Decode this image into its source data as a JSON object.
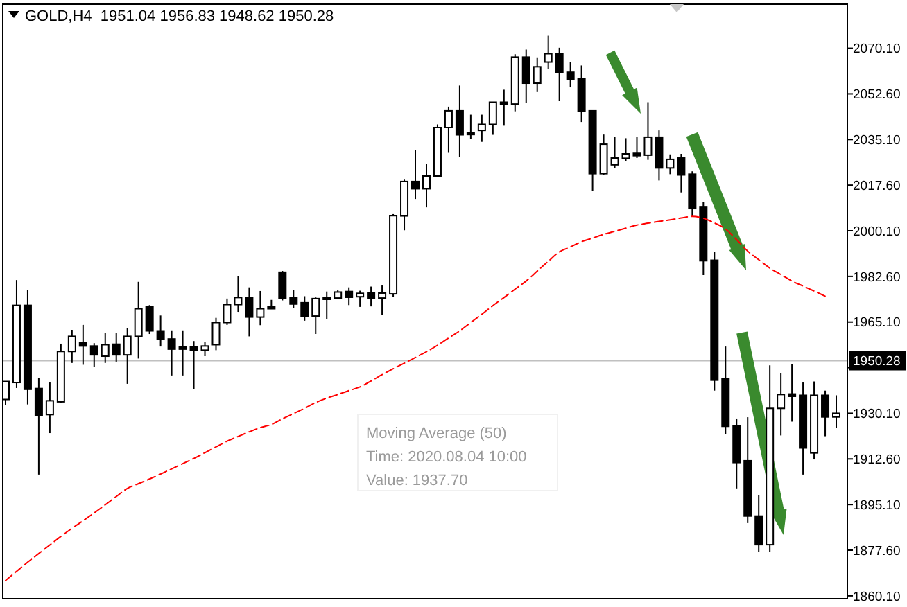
{
  "chart_data": {
    "type": "candlestick",
    "title": "GOLD,H4  1951.04 1956.83 1948.62 1950.28",
    "annotations": [
      "Moving Average (50)",
      "Time: 2020.08.04 10:00",
      "Value: 1937.70"
    ],
    "categories": [
      null,
      null,
      null,
      null,
      null,
      null,
      null,
      null,
      null,
      null,
      null,
      null,
      null,
      null,
      null,
      null,
      null,
      null,
      null,
      null,
      null,
      null,
      null,
      null,
      null,
      null,
      null,
      null,
      null,
      null,
      null,
      null,
      null,
      null,
      null,
      null,
      null,
      null,
      null,
      null,
      null,
      null,
      null,
      null,
      null,
      null,
      null,
      null,
      null,
      null,
      null,
      null,
      null,
      null,
      null,
      null,
      null,
      null,
      null,
      null,
      null,
      null,
      null,
      null,
      null,
      null,
      null,
      null,
      null,
      null,
      null,
      null,
      null,
      null,
      null,
      null
    ],
    "ylim": [
      1859,
      2087
    ],
    "tick_labels": "y",
    "yticks": [
      {
        "value": 2070.1,
        "label": "2070.10"
      },
      {
        "value": 2052.6,
        "label": "2052.60"
      },
      {
        "value": 2035.1,
        "label": "2035.10"
      },
      {
        "value": 2017.6,
        "label": "2017.60"
      },
      {
        "value": 2000.1,
        "label": "2000.10"
      },
      {
        "value": 1982.6,
        "label": "1982.60"
      },
      {
        "value": 1965.1,
        "label": "1965.10"
      },
      {
        "value": 1947.6,
        "label": null
      },
      {
        "value": 1930.1,
        "label": "1930.10"
      },
      {
        "value": 1912.6,
        "label": "1912.60"
      },
      {
        "value": 1895.1,
        "label": "1895.10"
      },
      {
        "value": 1877.6,
        "label": "1877.60"
      },
      {
        "value": 1860.1,
        "label": "1860.10"
      }
    ],
    "ref_lines": [
      {
        "axis": "y",
        "value": 1950.28,
        "label": "1950.28",
        "color": "#c0c0c0"
      }
    ],
    "color": "#000000",
    "ohlc": [
      [
        1935.4,
        1942.3,
        1933.3,
        1942.3
      ],
      [
        1941.9,
        1981.2,
        1939.8,
        1971.5
      ],
      [
        1971.5,
        1977.3,
        1933.5,
        1939.3
      ],
      [
        1939.6,
        1943.7,
        1906.6,
        1929.2
      ],
      [
        1929.6,
        1941.9,
        1922.5,
        1934.9
      ],
      [
        1934.5,
        1956.8,
        1934.0,
        1953.8
      ],
      [
        1953.8,
        1962.1,
        1949.4,
        1959.6
      ],
      [
        1957.1,
        1964.0,
        1948.7,
        1955.9
      ],
      [
        1955.9,
        1957.0,
        1947.8,
        1952.5
      ],
      [
        1952.0,
        1960.9,
        1949.4,
        1956.4
      ],
      [
        1956.6,
        1961.0,
        1949.9,
        1952.5
      ],
      [
        1952.5,
        1962.8,
        1941.4,
        1959.6
      ],
      [
        1959.6,
        1980.5,
        1951.1,
        1970.2
      ],
      [
        1971.1,
        1971.6,
        1960.5,
        1961.7
      ],
      [
        1961.7,
        1967.6,
        1955.7,
        1958.4
      ],
      [
        1958.6,
        1961.9,
        1944.6,
        1954.7
      ],
      [
        1955.6,
        1961.9,
        1944.6,
        1954.7
      ],
      [
        1955.6,
        1957.8,
        1939.3,
        1954.3
      ],
      [
        1954.3,
        1957.5,
        1952.0,
        1955.9
      ],
      [
        1956.4,
        1966.7,
        1954.3,
        1964.9
      ],
      [
        1964.9,
        1974.1,
        1964.0,
        1971.8
      ],
      [
        1971.8,
        1982.6,
        1969.0,
        1974.5
      ],
      [
        1974.5,
        1978.4,
        1959.6,
        1967.0
      ],
      [
        1967.0,
        1977.0,
        1963.9,
        1970.2
      ],
      [
        1970.9,
        1973.6,
        1970.2,
        1970.2
      ],
      [
        1984.2,
        1984.7,
        1973.4,
        1974.3
      ],
      [
        1974.5,
        1977.3,
        1970.6,
        1972.0
      ],
      [
        1972.5,
        1975.0,
        1965.6,
        1967.4
      ],
      [
        1967.4,
        1974.7,
        1960.5,
        1974.1
      ],
      [
        1974.5,
        1976.8,
        1966.3,
        1973.8
      ],
      [
        1974.3,
        1977.5,
        1973.8,
        1976.6
      ],
      [
        1976.8,
        1978.4,
        1971.6,
        1974.6
      ],
      [
        1974.8,
        1977.1,
        1970.9,
        1976.1
      ],
      [
        1976.2,
        1978.7,
        1971.1,
        1974.3
      ],
      [
        1974.3,
        1979.1,
        1967.7,
        1976.2
      ],
      [
        1975.9,
        2006.5,
        1974.6,
        2005.9
      ],
      [
        2005.8,
        2019.7,
        2000.3,
        2019.0
      ],
      [
        2019.0,
        2031.0,
        2012.3,
        2016.2
      ],
      [
        2016.2,
        2025.7,
        2009.1,
        2021.1
      ],
      [
        2021.1,
        2040.9,
        2021.0,
        2039.7
      ],
      [
        2039.7,
        2047.7,
        2030.0,
        2046.1
      ],
      [
        2046.1,
        2055.8,
        2028.4,
        2036.9
      ],
      [
        2037.7,
        2044.6,
        2035.3,
        2037.0
      ],
      [
        2038.6,
        2044.6,
        2034.2,
        2040.9
      ],
      [
        2040.9,
        2049.4,
        2036.9,
        2049.4
      ],
      [
        2049.4,
        2054.2,
        2040.4,
        2048.5
      ],
      [
        2048.7,
        2067.8,
        2045.9,
        2066.7
      ],
      [
        2066.7,
        2069.6,
        2049.0,
        2056.7
      ],
      [
        2056.7,
        2066.6,
        2053.3,
        2063.0
      ],
      [
        2064.8,
        2074.9,
        2062.1,
        2068.0
      ],
      [
        2068.0,
        2070.3,
        2049.8,
        2060.9
      ],
      [
        2060.9,
        2064.8,
        2055.1,
        2058.3
      ],
      [
        2058.3,
        2063.5,
        2041.8,
        2045.9
      ],
      [
        2046.1,
        2046.1,
        2015.3,
        2022.0
      ],
      [
        2022.0,
        2037.0,
        2021.5,
        2033.3
      ],
      [
        2025.4,
        2036.2,
        2024.2,
        2028.0
      ],
      [
        2027.9,
        2035.6,
        2026.8,
        2029.6
      ],
      [
        2029.8,
        2036.0,
        2028.0,
        2028.9
      ],
      [
        2029.1,
        2049.4,
        2027.3,
        2036.0
      ],
      [
        2036.0,
        2038.6,
        2019.4,
        2024.2
      ],
      [
        2024.2,
        2029.4,
        2021.8,
        2027.5
      ],
      [
        2028.0,
        2029.6,
        2014.8,
        2021.5
      ],
      [
        2021.8,
        2022.9,
        2005.6,
        2008.6
      ],
      [
        2009.1,
        2011.2,
        1983.1,
        1988.6
      ],
      [
        1988.8,
        1992.1,
        1938.8,
        1942.8
      ],
      [
        1943.4,
        1955.7,
        1922.1,
        1925.1
      ],
      [
        1925.3,
        1928.1,
        1901.3,
        1911.2
      ],
      [
        1911.9,
        1928.6,
        1888.0,
        1890.7
      ],
      [
        1890.7,
        1898.6,
        1877.0,
        1879.7
      ],
      [
        1879.7,
        1948.5,
        1877.0,
        1932.0
      ],
      [
        1932.0,
        1945.5,
        1921.6,
        1937.3
      ],
      [
        1937.5,
        1949.0,
        1926.9,
        1936.6
      ],
      [
        1937.0,
        1941.9,
        1906.6,
        1916.8
      ],
      [
        1914.9,
        1942.3,
        1912.4,
        1937.0
      ],
      [
        1937.0,
        1938.8,
        1921.3,
        1928.7
      ],
      [
        1928.7,
        1937.0,
        1924.6,
        1930.1
      ]
    ],
    "series": [
      {
        "type": "line",
        "color": "#ff0000",
        "line_style": "dashed",
        "values": [
          1866.0,
          1869.5,
          1873.0,
          1876.3,
          1879.6,
          1882.9,
          1886.0,
          1888.9,
          1891.9,
          1895.0,
          1898.2,
          1901.3,
          1903.1,
          1904.9,
          1906.8,
          1908.8,
          1910.8,
          1912.8,
          1915.0,
          1917.2,
          1919.4,
          1921.2,
          1923.0,
          1924.6,
          1925.8,
          1928.0,
          1930.0,
          1932.0,
          1934.2,
          1935.9,
          1937.3,
          1938.8,
          1940.2,
          1942.5,
          1944.9,
          1947.2,
          1949.3,
          1951.5,
          1953.7,
          1956.2,
          1959.0,
          1961.7,
          1964.9,
          1968.1,
          1971.4,
          1974.5,
          1977.7,
          1980.8,
          1984.6,
          1988.4,
          1992.0,
          1993.9,
          1995.9,
          1997.3,
          1998.7,
          1999.9,
          2001.1,
          2002.3,
          2003.0,
          2003.7,
          2004.3,
          2005.0,
          2005.6,
          2004.9,
          2003.1,
          2000.8,
          1996.7,
          1992.3,
          1989.0,
          1985.8,
          1983.3,
          1980.8,
          1978.9,
          1977.0,
          1975.0,
          null
        ]
      }
    ]
  }
}
